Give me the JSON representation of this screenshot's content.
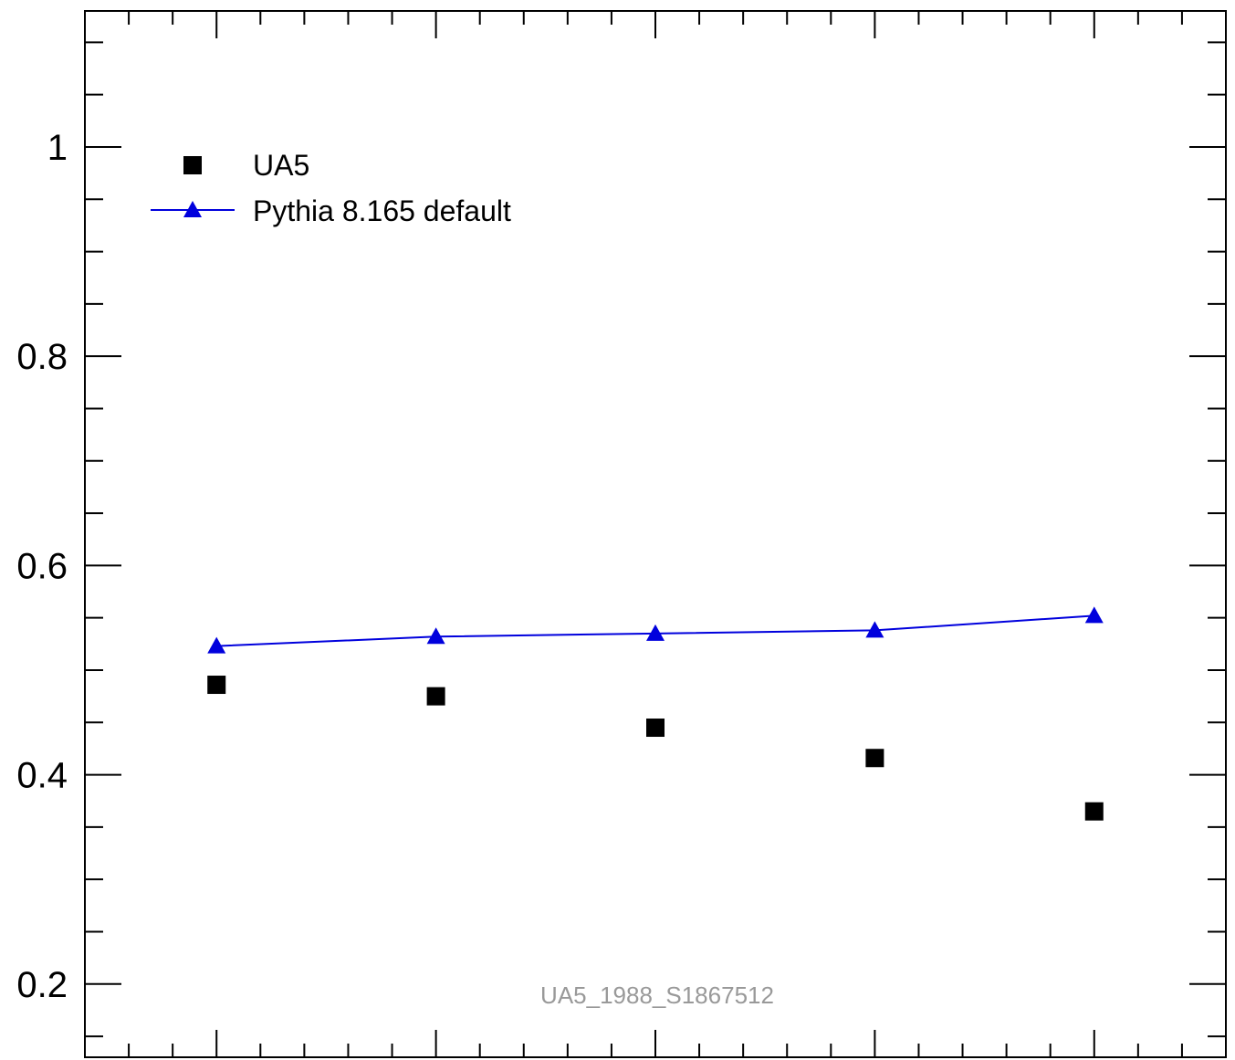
{
  "chart_data": {
    "type": "scatter",
    "x": [
      1,
      2,
      3,
      4,
      5
    ],
    "xlim": [
      0.4,
      5.6
    ],
    "ylim": [
      0.13,
      1.13
    ],
    "y_ticks": [
      0.2,
      0.4,
      0.6,
      0.8,
      1.0
    ],
    "y_tick_labels": [
      "0.2",
      "0.4",
      "0.6",
      "0.8",
      "1"
    ],
    "series": [
      {
        "name": "UA5",
        "style": "markers",
        "marker": "square",
        "color": "#000000",
        "values": [
          0.486,
          0.475,
          0.445,
          0.416,
          0.365
        ]
      },
      {
        "name": "Pythia 8.165 default",
        "style": "line+markers",
        "marker": "triangle",
        "color": "#0000dd",
        "values": [
          0.523,
          0.532,
          0.535,
          0.538,
          0.552
        ]
      }
    ],
    "legend_position": "top-left",
    "annotation": "UA5_1988_S1867512"
  }
}
